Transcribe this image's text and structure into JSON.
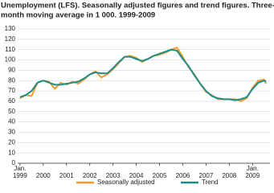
{
  "chart_data": {
    "type": "line",
    "title_lines": [
      "Unemployment (LFS). Seasonally adjusted figures and trend figures. Three-",
      "month moving average in 1 000. 1999-2009"
    ],
    "x": [
      1999,
      1999.25,
      1999.5,
      1999.75,
      2000,
      2000.25,
      2000.5,
      2000.75,
      2001,
      2001.25,
      2001.5,
      2001.75,
      2002,
      2002.25,
      2002.5,
      2002.75,
      2003,
      2003.25,
      2003.5,
      2003.75,
      2004,
      2004.25,
      2004.5,
      2004.75,
      2005,
      2005.25,
      2005.5,
      2005.75,
      2006,
      2006.25,
      2006.5,
      2006.75,
      2007,
      2007.25,
      2007.5,
      2007.75,
      2008,
      2008.25,
      2008.5,
      2008.75,
      2009,
      2009.25,
      2009.5,
      2009.58
    ],
    "series": [
      {
        "name": "Seasonally adjusted",
        "color": "#f39a2e",
        "values": [
          63,
          66,
          65,
          78,
          80,
          79,
          72,
          78,
          76,
          79,
          77,
          81,
          86,
          89,
          83,
          86,
          91,
          97,
          103,
          104,
          102,
          98,
          101,
          104,
          105,
          107,
          110,
          112,
          103,
          93,
          86,
          77,
          69,
          66,
          62,
          62,
          62,
          62,
          60,
          63,
          73,
          80,
          81,
          77
        ]
      },
      {
        "name": "Trend",
        "color": "#1f8c8c",
        "values": [
          64,
          66,
          70,
          78,
          80,
          78,
          76,
          76,
          77,
          78,
          79,
          82,
          86,
          88,
          87,
          87,
          92,
          98,
          103,
          103,
          101,
          99,
          101,
          104,
          106,
          108,
          110,
          109,
          101,
          94,
          85,
          77,
          70,
          65,
          63,
          62,
          62,
          61,
          62,
          64,
          72,
          78,
          80,
          79
        ]
      }
    ],
    "xlim": [
      1998.9,
      2009.75
    ],
    "xticks": [
      {
        "value": 1999,
        "label": "Jan. 1999"
      },
      2000,
      2001,
      2002,
      2003,
      2004,
      2005,
      2006,
      2007,
      2008,
      {
        "value": 2009,
        "label": "Jan. 2009"
      }
    ],
    "ylim": [
      0,
      130
    ],
    "yticks": [
      0,
      10,
      20,
      30,
      40,
      50,
      60,
      70,
      80,
      90,
      100,
      110,
      120,
      130
    ],
    "grid": true
  }
}
